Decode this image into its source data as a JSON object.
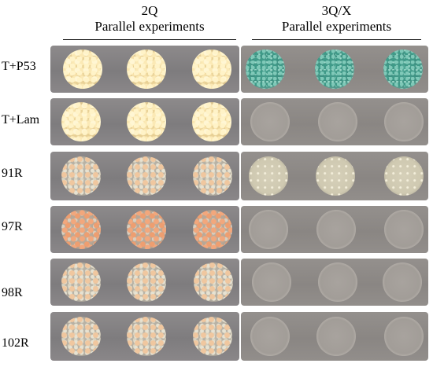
{
  "headers": {
    "left": {
      "title": "2Q",
      "subtitle": "Parallel experiments"
    },
    "right": {
      "title": "3Q/X",
      "subtitle": "Parallel experiments"
    }
  },
  "rows": [
    {
      "label": "T+P53",
      "left": "cream",
      "right": "blue"
    },
    {
      "label": "T+Lam",
      "left": "cream",
      "right": "faint"
    },
    {
      "label": "91R",
      "left": "mixed",
      "right": "pale"
    },
    {
      "label": "97R",
      "left": "orange",
      "right": "faint"
    },
    {
      "label": "98R",
      "left": "mixed",
      "right": "faint"
    },
    {
      "label": "102R",
      "left": "mixed",
      "right": "faint"
    }
  ]
}
